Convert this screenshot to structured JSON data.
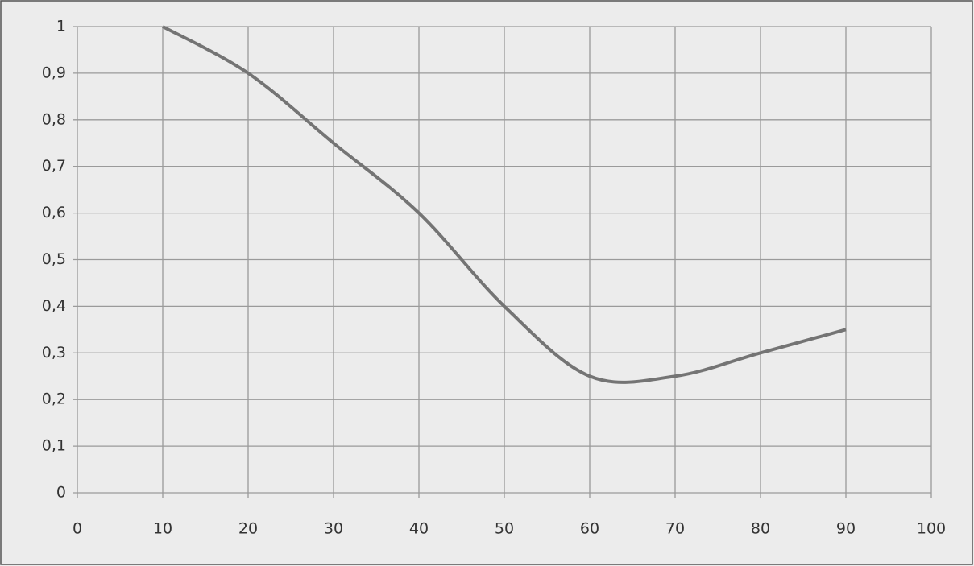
{
  "chart_data": {
    "type": "line",
    "smooth": true,
    "grid": true,
    "color": "#747474",
    "x": [
      10,
      20,
      30,
      40,
      50,
      60,
      70,
      80,
      90
    ],
    "values": [
      1,
      0.9,
      0.75,
      0.6,
      0.4,
      0.25,
      0.25,
      0.3,
      0.35
    ],
    "xlim": [
      0,
      100
    ],
    "xticks": [
      0,
      10,
      20,
      30,
      40,
      50,
      60,
      70,
      80,
      90,
      100
    ],
    "ylim": [
      0,
      1
    ],
    "yticks": [
      0,
      {
        "value": 0.1,
        "label": "0,1"
      },
      {
        "value": 0.2,
        "label": "0,2"
      },
      {
        "value": 0.3,
        "label": "0,3"
      },
      {
        "value": 0.4,
        "label": "0,4"
      },
      {
        "value": 0.5,
        "label": "0,5"
      },
      {
        "value": 0.6,
        "label": "0,6"
      },
      {
        "value": 0.7,
        "label": "0,7"
      },
      {
        "value": 0.8,
        "label": "0,8"
      },
      {
        "value": 0.9,
        "label": "0,9"
      },
      1
    ]
  }
}
